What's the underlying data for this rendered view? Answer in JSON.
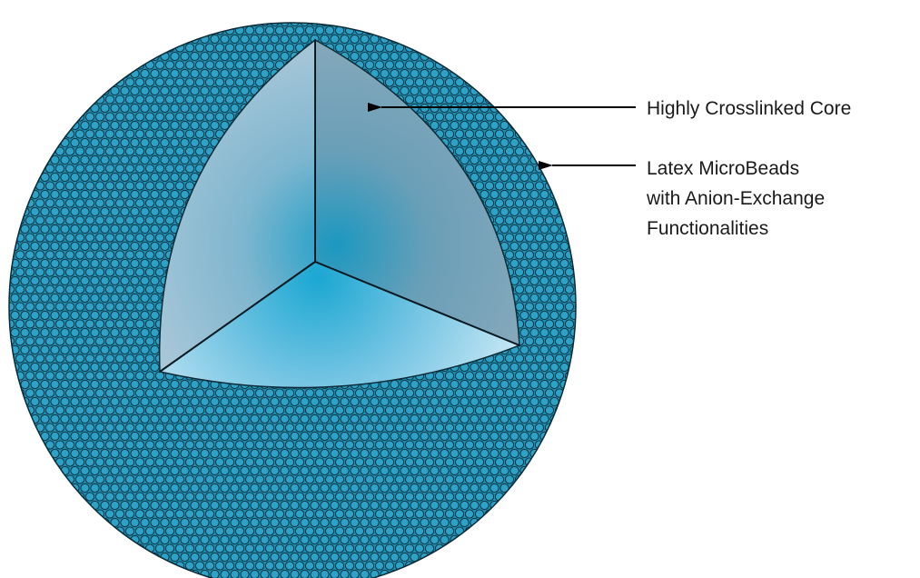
{
  "diagram": {
    "labels": {
      "core": "Highly Crosslinked Core",
      "shell_line1": "Latex MicroBeads",
      "shell_line2": "with Anion-Exchange",
      "shell_line3": "Functionalities"
    },
    "colors": {
      "bead_fill": "#1a8fb3",
      "bead_outline": "#0a2a36",
      "core_center": "#1aa3cc",
      "core_wall_light": "#a8c6d8",
      "core_wall_dark": "#7fa6bb",
      "core_floor_light": "#bfe3f2",
      "arrow": "#000000"
    }
  }
}
